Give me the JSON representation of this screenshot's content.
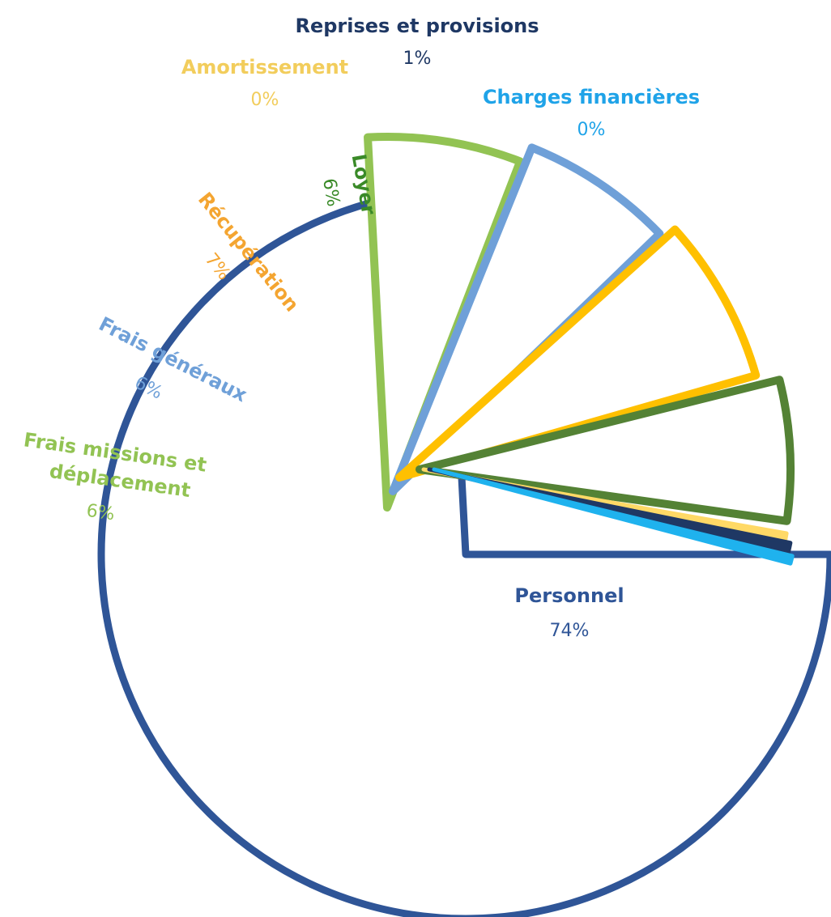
{
  "chart_data": {
    "type": "pie",
    "title": "",
    "legend": "none",
    "slices": [
      {
        "name": "Personnel",
        "label": "74%",
        "value": 74,
        "color": "#2f5597"
      },
      {
        "name": "Frais missions et déplacement",
        "label": "6%",
        "value": 6,
        "color": "#92c353"
      },
      {
        "name": "Frais généraux",
        "label": "6%",
        "value": 6,
        "color": "#6fa0d8"
      },
      {
        "name": "Récupération",
        "label": "7%",
        "value": 7,
        "color": "#ffc000"
      },
      {
        "name": "Loyer",
        "label": "6%",
        "value": 6,
        "color": "#548235"
      },
      {
        "name": "Amortissement",
        "label": "0%",
        "value": 0,
        "color": "#ffd966"
      },
      {
        "name": "Reprises et provisions",
        "label": "1%",
        "value": 1,
        "color": "#1f3864"
      },
      {
        "name": "Charges financières",
        "label": "0%",
        "value": 0,
        "color": "#1fb2ee"
      }
    ]
  },
  "label_colors": {
    "Personnel": {
      "name": "#2f5597",
      "pct": "#2f5597"
    },
    "Frais missions et déplacement": {
      "name": "#92c353",
      "pct": "#92c353"
    },
    "Frais généraux": {
      "name": "#6fa0d8",
      "pct": "#6fa0d8"
    },
    "Récupération": {
      "name": "#f4a531",
      "pct": "#f4a531"
    },
    "Loyer": {
      "name": "#3a8a28",
      "pct": "#3a8a28"
    },
    "Amortissement": {
      "name": "#f2cd5c",
      "pct": "#f2cd5c"
    },
    "Reprises et provisions": {
      "name": "#1f3864",
      "pct": "#1f3864"
    },
    "Charges financières": {
      "name": "#1fa3e8",
      "pct": "#1fa3e8"
    }
  }
}
